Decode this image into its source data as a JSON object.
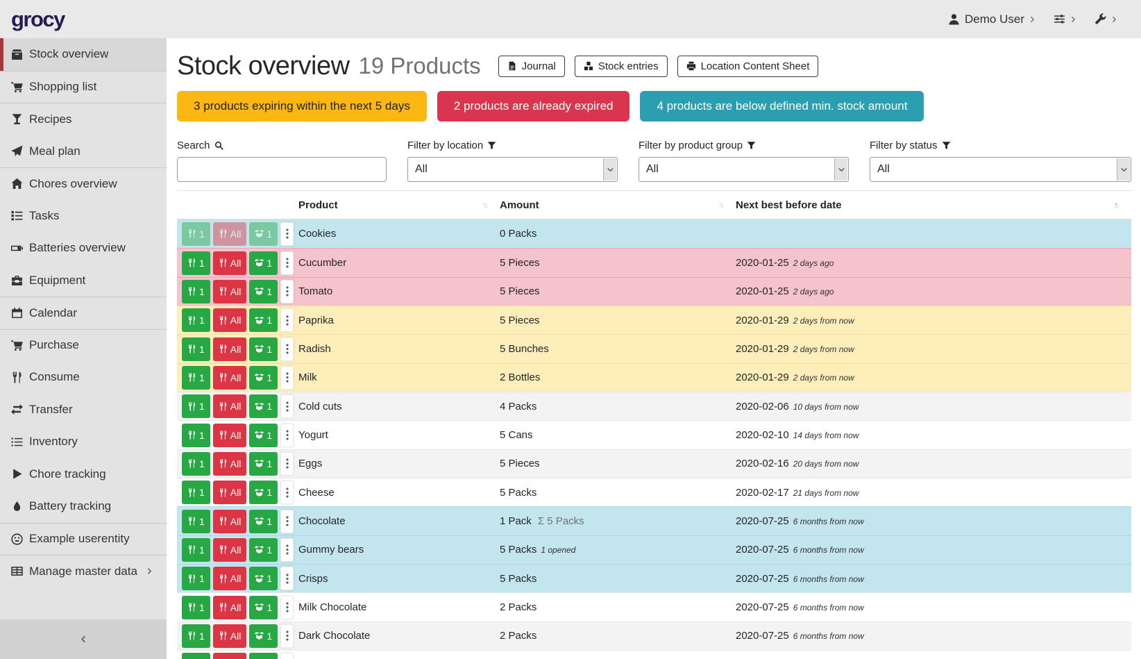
{
  "brand": "grocy",
  "colors": {
    "brand_logo": "#231d54",
    "active_border": "#a93439",
    "banner_warning": "#fcb713",
    "banner_danger": "#d9354e",
    "banner_info": "#2b9fb0",
    "btn_success": "#28a745",
    "btn_danger": "#dc3545",
    "row_info": "#c3e5ee",
    "row_danger": "#f5c3cb",
    "row_warning": "#feefba",
    "sort_active": "#c77b35"
  },
  "topbar": {
    "user_label": "Demo User"
  },
  "sidebar": {
    "items": [
      {
        "label": "Stock overview",
        "icon": "box",
        "active": true
      },
      {
        "label": "Shopping list",
        "icon": "cart",
        "divider_before": true
      },
      {
        "label": "Recipes",
        "icon": "cocktail",
        "divider_before": true
      },
      {
        "label": "Meal plan",
        "icon": "plane"
      },
      {
        "label": "Chores overview",
        "icon": "home",
        "divider_before": true
      },
      {
        "label": "Tasks",
        "icon": "tasks"
      },
      {
        "label": "Batteries overview",
        "icon": "battery"
      },
      {
        "label": "Equipment",
        "icon": "toolbox"
      },
      {
        "label": "Calendar",
        "icon": "calendar",
        "divider_before": true
      },
      {
        "label": "Purchase",
        "icon": "cart",
        "divider_before": true
      },
      {
        "label": "Consume",
        "icon": "utensils"
      },
      {
        "label": "Transfer",
        "icon": "exchange"
      },
      {
        "label": "Inventory",
        "icon": "list"
      },
      {
        "label": "Chore tracking",
        "icon": "play"
      },
      {
        "label": "Battery tracking",
        "icon": "droplet"
      },
      {
        "label": "Example userentity",
        "icon": "smiley",
        "divider_before": true
      },
      {
        "label": "Manage master data",
        "icon": "table",
        "divider_before": true,
        "chevron": true
      }
    ]
  },
  "header": {
    "title": "Stock overview",
    "subtitle": "19 Products",
    "buttons": [
      {
        "label": "Journal",
        "icon": "file"
      },
      {
        "label": "Stock entries",
        "icon": "boxes"
      },
      {
        "label": "Location Content Sheet",
        "icon": "print"
      }
    ]
  },
  "banners": [
    {
      "label": "3 products expiring within the next 5 days",
      "type": "warning"
    },
    {
      "label": "2 products are already expired",
      "type": "danger"
    },
    {
      "label": "4 products are below defined min. stock amount",
      "type": "info"
    }
  ],
  "filters": {
    "search": {
      "label": "Search",
      "icon": "search",
      "value": ""
    },
    "location": {
      "label": "Filter by location",
      "icon": "filter",
      "value": "All"
    },
    "product_group": {
      "label": "Filter by product group",
      "icon": "filter",
      "value": "All"
    },
    "status": {
      "label": "Filter by status",
      "icon": "filter",
      "value": "All"
    }
  },
  "table": {
    "columns": [
      {
        "label": "Product",
        "sort": "none"
      },
      {
        "label": "Amount",
        "sort": "none"
      },
      {
        "label": "Next best before date",
        "sort": "asc"
      }
    ],
    "row_buttons": {
      "consume_one": "1",
      "consume_all": "All",
      "open_one": "1"
    },
    "rows": [
      {
        "product": "Cookies",
        "amount": "0 Packs",
        "date": "",
        "timeago": "",
        "status": "info",
        "disabled": true
      },
      {
        "product": "Cucumber",
        "amount": "5 Pieces",
        "date": "2020-01-25",
        "timeago": "2 days ago",
        "status": "danger"
      },
      {
        "product": "Tomato",
        "amount": "5 Pieces",
        "date": "2020-01-25",
        "timeago": "2 days ago",
        "status": "danger"
      },
      {
        "product": "Paprika",
        "amount": "5 Pieces",
        "date": "2020-01-29",
        "timeago": "2 days from now",
        "status": "warning"
      },
      {
        "product": "Radish",
        "amount": "5 Bunches",
        "date": "2020-01-29",
        "timeago": "2 days from now",
        "status": "warning"
      },
      {
        "product": "Milk",
        "amount": "2 Bottles",
        "date": "2020-01-29",
        "timeago": "2 days from now",
        "status": "warning"
      },
      {
        "product": "Cold cuts",
        "amount": "4 Packs",
        "date": "2020-02-06",
        "timeago": "10 days from now",
        "status": "stripe"
      },
      {
        "product": "Yogurt",
        "amount": "5 Cans",
        "date": "2020-02-10",
        "timeago": "14 days from now",
        "status": "none"
      },
      {
        "product": "Eggs",
        "amount": "5 Pieces",
        "date": "2020-02-16",
        "timeago": "20 days from now",
        "status": "stripe"
      },
      {
        "product": "Cheese",
        "amount": "5 Packs",
        "date": "2020-02-17",
        "timeago": "21 days from now",
        "status": "none"
      },
      {
        "product": "Chocolate",
        "amount": "1 Pack",
        "amount_aggregate": "Σ 5 Packs",
        "date": "2020-07-25",
        "timeago": "6 months from now",
        "status": "info"
      },
      {
        "product": "Gummy bears",
        "amount": "5 Packs",
        "amount_note": "1 opened",
        "date": "2020-07-25",
        "timeago": "6 months from now",
        "status": "info"
      },
      {
        "product": "Crisps",
        "amount": "5 Packs",
        "date": "2020-07-25",
        "timeago": "6 months from now",
        "status": "info"
      },
      {
        "product": "Milk Chocolate",
        "amount": "2 Packs",
        "date": "2020-07-25",
        "timeago": "6 months from now",
        "status": "none"
      },
      {
        "product": "Dark Chocolate",
        "amount": "2 Packs",
        "date": "2020-07-25",
        "timeago": "6 months from now",
        "status": "stripe"
      },
      {
        "product": "",
        "amount": "",
        "date": "",
        "timeago": "",
        "status": "partial"
      }
    ]
  }
}
